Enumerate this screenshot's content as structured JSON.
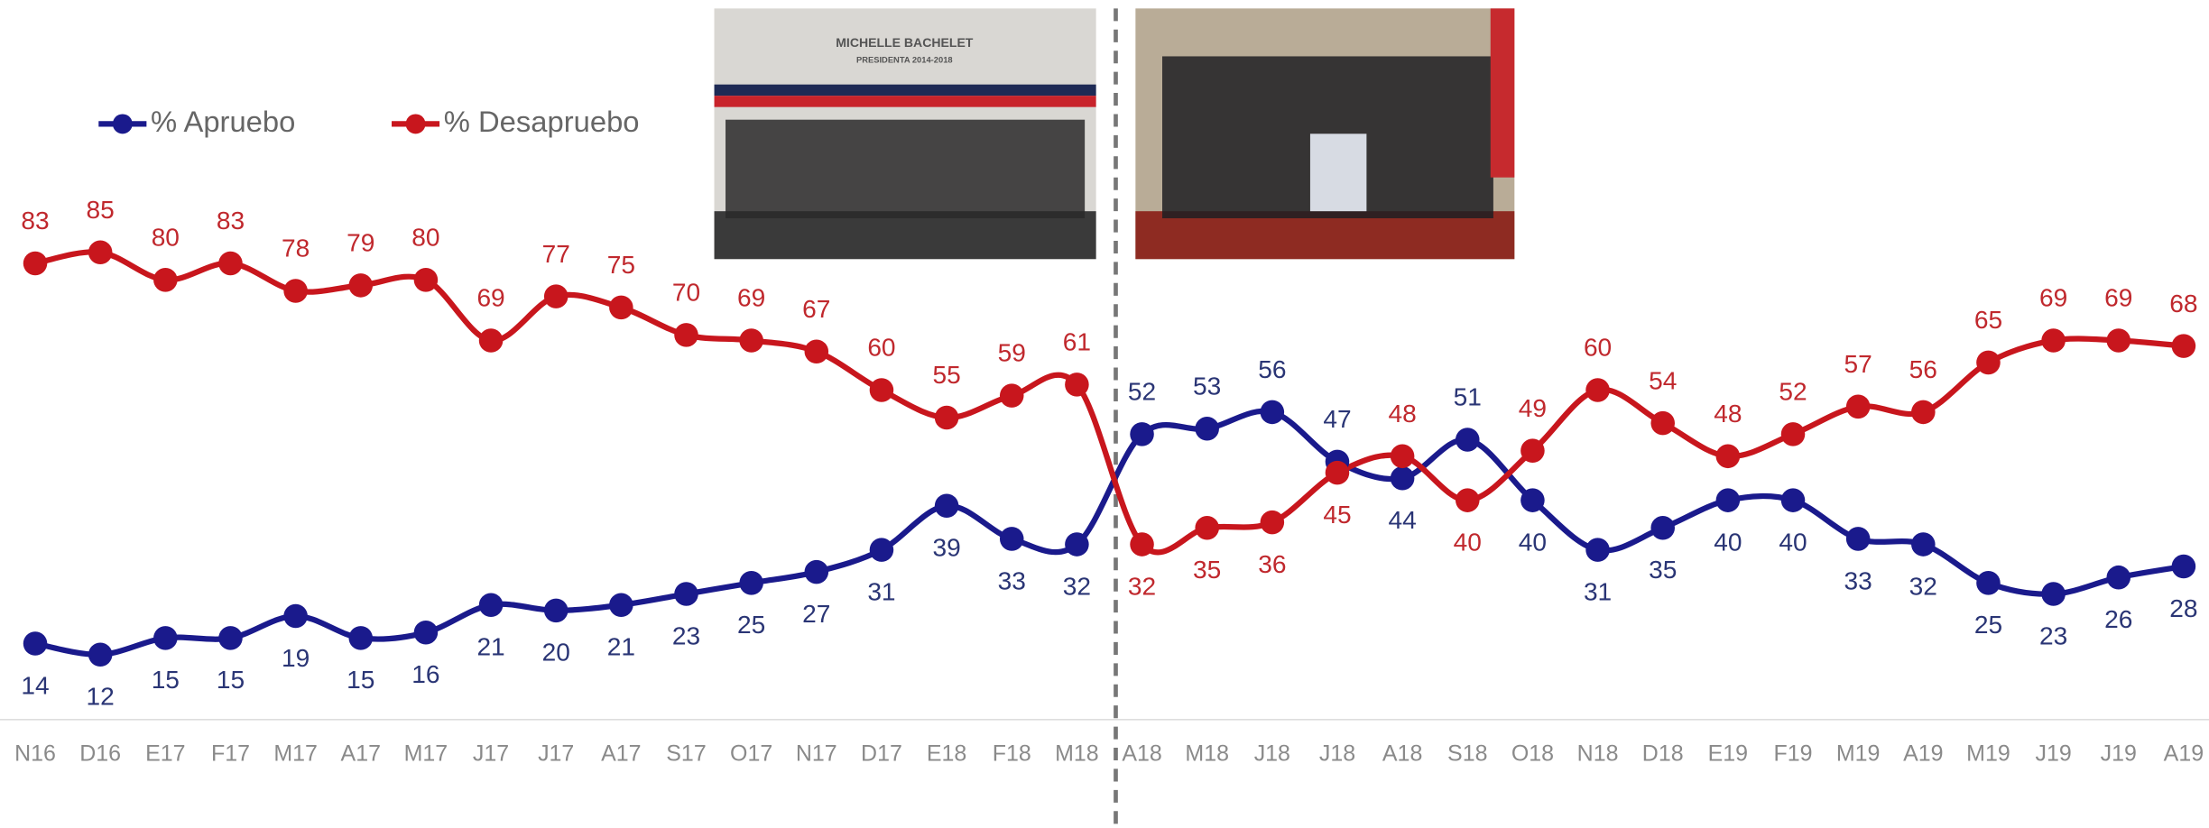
{
  "chart_data": {
    "type": "line",
    "categories": [
      "N16",
      "D16",
      "E17",
      "F17",
      "M17",
      "A17",
      "M17",
      "J17",
      "J17",
      "A17",
      "S17",
      "O17",
      "N17",
      "D17",
      "E18",
      "F18",
      "M18",
      "A18",
      "M18",
      "J18",
      "J18",
      "A18",
      "S18",
      "O18",
      "N18",
      "D18",
      "E19",
      "F19",
      "M19",
      "A19",
      "M19",
      "J19",
      "J19",
      "A19"
    ],
    "series": [
      {
        "name": "% Apruebo",
        "color": "#1a1a8c",
        "values": [
          14,
          12,
          15,
          15,
          19,
          15,
          16,
          21,
          20,
          21,
          23,
          25,
          27,
          31,
          39,
          33,
          32,
          52,
          53,
          56,
          47,
          44,
          51,
          40,
          31,
          35,
          40,
          40,
          33,
          32,
          25,
          23,
          26,
          28
        ]
      },
      {
        "name": "% Desapruebo",
        "color": "#c8161d",
        "values": [
          83,
          85,
          80,
          83,
          78,
          79,
          80,
          69,
          77,
          75,
          70,
          69,
          67,
          60,
          55,
          59,
          61,
          32,
          35,
          36,
          45,
          48,
          40,
          49,
          60,
          54,
          48,
          52,
          57,
          56,
          65,
          69,
          69,
          68
        ]
      }
    ],
    "ylim": [
      0,
      100
    ],
    "grid": false,
    "legend": "top-left"
  },
  "images": [
    {
      "caption": [
        "MICHELLE BACHELET",
        "PRESIDENTA 2014-2018"
      ]
    },
    {
      "caption": []
    }
  ]
}
